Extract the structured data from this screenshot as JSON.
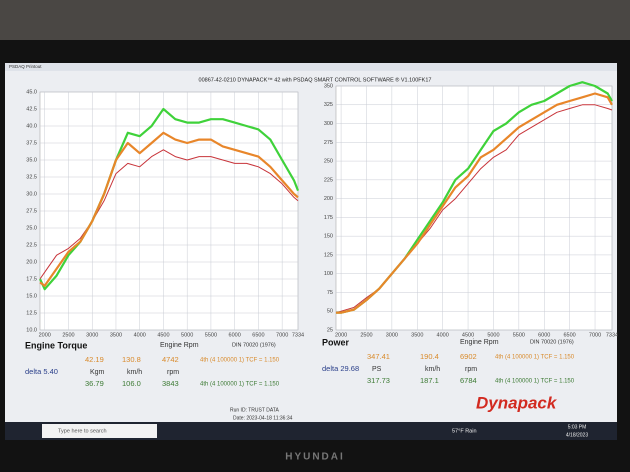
{
  "chart_data": [
    {
      "type": "line",
      "title": "00867-42-0210 DYNAPACK™ 42 with PSDAQ SMART CONTROL SOFTWARE ® V1.100FK17",
      "x": [
        1900,
        2000,
        2250,
        2500,
        2750,
        3000,
        3250,
        3500,
        3750,
        4000,
        4250,
        4500,
        4750,
        5000,
        5250,
        5500,
        5750,
        6000,
        6250,
        6500,
        6750,
        7000,
        7250,
        7334
      ],
      "xlim": [
        1900,
        7334
      ],
      "xticks": [
        2000,
        2500,
        3000,
        3500,
        4000,
        4500,
        5000,
        5500,
        6000,
        6500,
        7000,
        7334
      ],
      "ylim": [
        10,
        45
      ],
      "yticks": [
        {
          "value": 10,
          "label": "10.0"
        },
        12.5,
        {
          "value": 15,
          "label": "15.0"
        },
        17.5,
        {
          "value": 20,
          "label": "20.0"
        },
        22.5,
        {
          "value": 25,
          "label": "25.0"
        },
        27.5,
        {
          "value": 30,
          "label": "30.0"
        },
        32.5,
        {
          "value": 35,
          "label": "35.0"
        },
        37.5,
        {
          "value": 40,
          "label": "40.0"
        },
        42.5,
        {
          "value": 45,
          "label": "45.0"
        }
      ],
      "grid": true,
      "series": [
        {
          "color": "#c8343a",
          "values": [
            17.5,
            18.5,
            21,
            22,
            23.5,
            26,
            29,
            33,
            34.5,
            34,
            35.5,
            36.5,
            35.5,
            35,
            35.5,
            35.5,
            35,
            34.5,
            34.5,
            34,
            33,
            31.5,
            29.5,
            29
          ]
        },
        {
          "color": "#3fd23a",
          "values": [
            17.5,
            16,
            18,
            21,
            23,
            26,
            30,
            35,
            39,
            38.5,
            40,
            42.5,
            41,
            40.5,
            40.5,
            41,
            41,
            40.5,
            40,
            39.5,
            38,
            35,
            32,
            30.5
          ]
        },
        {
          "color": "#e8862a",
          "values": [
            17,
            16.5,
            19,
            21.5,
            23,
            26,
            30,
            35,
            37.5,
            36,
            37.5,
            39,
            38,
            37.5,
            38,
            38,
            37,
            36.5,
            36,
            35.5,
            34,
            32,
            30,
            29.5
          ]
        }
      ]
    },
    {
      "type": "line",
      "x": [
        1900,
        2000,
        2250,
        2500,
        2750,
        3000,
        3250,
        3500,
        3750,
        4000,
        4250,
        4500,
        4750,
        5000,
        5250,
        5500,
        5750,
        6000,
        6250,
        6500,
        6750,
        7000,
        7250,
        7334
      ],
      "xlim": [
        1900,
        7334
      ],
      "xticks": [
        2000,
        2500,
        3000,
        3500,
        4000,
        4500,
        5000,
        5500,
        6000,
        6500,
        7000,
        7334
      ],
      "ylim": [
        25,
        350
      ],
      "yticks": [
        25,
        50,
        75,
        100,
        125,
        150,
        175,
        200,
        225,
        250,
        275,
        300,
        325,
        350
      ],
      "grid": true,
      "series": [
        {
          "color": "#c8343a",
          "values": [
            48,
            50,
            55,
            68,
            80,
            100,
            120,
            140,
            160,
            185,
            200,
            220,
            240,
            255,
            265,
            285,
            295,
            305,
            315,
            320,
            325,
            325,
            320,
            318
          ]
        },
        {
          "color": "#3fd23a",
          "values": [
            48,
            48,
            52,
            65,
            80,
            100,
            120,
            145,
            170,
            195,
            225,
            240,
            265,
            290,
            300,
            315,
            325,
            330,
            340,
            350,
            355,
            350,
            340,
            330
          ]
        },
        {
          "color": "#e8862a",
          "values": [
            48,
            48,
            52,
            65,
            80,
            100,
            120,
            140,
            165,
            190,
            215,
            230,
            255,
            265,
            280,
            295,
            305,
            315,
            325,
            330,
            335,
            340,
            335,
            325
          ]
        }
      ]
    }
  ],
  "window": {
    "app": "PSDAQ Printout"
  },
  "panels": [
    {
      "heading": "Engine Torque",
      "rpm_label": "Engine Rpm",
      "standard": "DIN 70020 (1976)",
      "run1": [
        "42.19",
        "130.8",
        "4742",
        "4th (4 100000 1) TCF = 1.150"
      ],
      "delta": "delta 5.40",
      "units": [
        "Kgm",
        "km/h",
        "rpm"
      ],
      "run2": [
        "36.79",
        "106.0",
        "3843",
        "4th (4 100000 1) TCF = 1.150"
      ]
    },
    {
      "heading": "Power",
      "rpm_label": "Engine Rpm",
      "standard": "DIN 70020 (1976)",
      "run1": [
        "347.41",
        "190.4",
        "6902",
        "4th (4 100000 1) TCF = 1.150"
      ],
      "delta": "delta 29.68",
      "units": [
        "PS",
        "km/h",
        "rpm"
      ],
      "run2": [
        "317.73",
        "187.1",
        "6784",
        "4th (4 100000 1) TCF = 1.150"
      ]
    }
  ],
  "footer": {
    "run_id": "Run ID: TRUST DATA",
    "date": "Date: 2023-04-18 11:36:34",
    "brand": "Dynapack"
  },
  "taskbar": {
    "search": "Type here to search",
    "weather": "57°F Rain",
    "time": "5:03 PM",
    "date": "4/18/2023"
  },
  "monitor": {
    "brand": "HYUNDAI"
  }
}
